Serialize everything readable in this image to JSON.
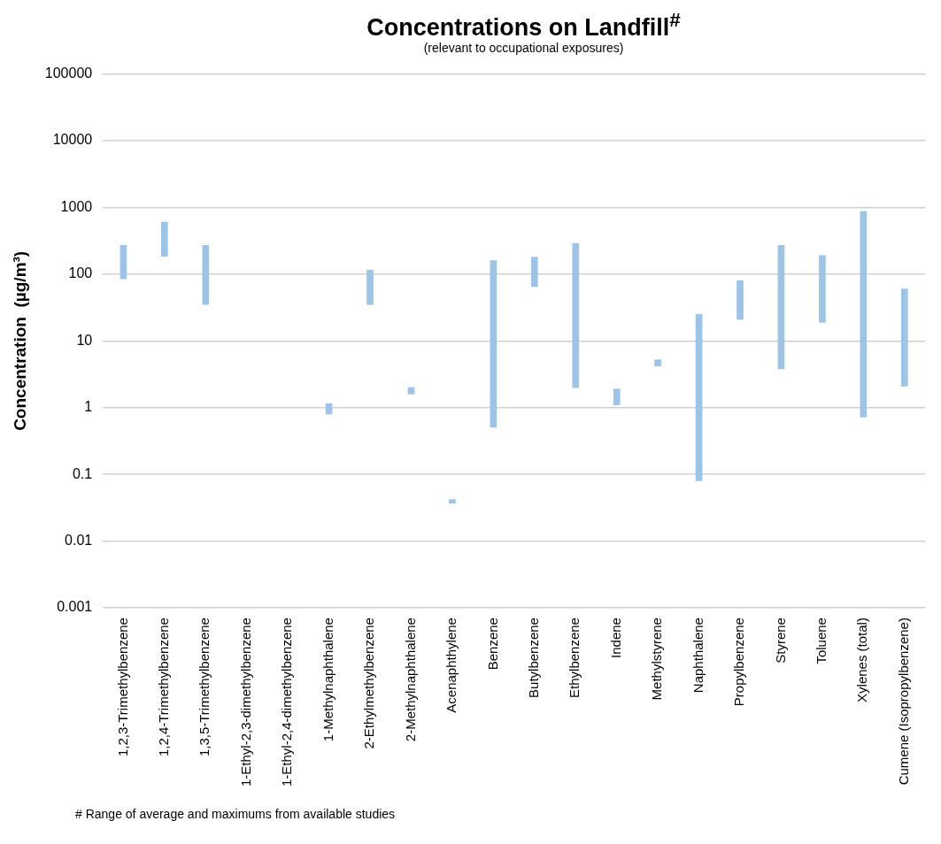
{
  "chart_data": {
    "type": "bar",
    "title": "Concentrations on Landfill$^{#}$",
    "subtitle": "(relevant to occupational exposures)",
    "ylabel": "Concentration  (µg/m³)",
    "categories": [
      "1,2,3-Trimethylbenzene",
      "1,2,4-Trimethylbenzene",
      "1,3,5-Trimethylbenzene",
      "1-Ethyl-2,3-dimethylbenzene",
      "1-Ethyl-2,4-dimethylbenzene",
      "1-Methylnaphthalene",
      "2-Ethylmethylbenzene",
      "2-Methylnaphthalene",
      "Acenaphthylene",
      "Benzene",
      "Butylbenzene",
      "Ethylbenzene",
      "Indene",
      "Methylstyrene",
      "Naphthalene",
      "Propylbenzene",
      "Styrene",
      "Toluene",
      "Xylenes (total)",
      "Cumene (Isopropylbenzene)"
    ],
    "base": [
      85,
      185,
      35,
      null,
      null,
      0.8,
      35,
      1.6,
      0.037,
      0.51,
      65,
      2.0,
      1.1,
      4.2,
      0.08,
      21,
      3.8,
      19,
      0.72,
      2.1
    ],
    "values": [
      185,
      415,
      235,
      null,
      null,
      0.35,
      80,
      0.4,
      0.005,
      159.5,
      115,
      288,
      0.8,
      1.0,
      24.9,
      59,
      266,
      171,
      869,
      58
    ],
    "color": "#9dc3e6",
    "log": "y",
    "ylim": [
      0.001,
      100000
    ],
    "yticks": [
      0.001,
      0.01,
      0.1,
      1,
      10,
      100,
      1000,
      10000,
      100000
    ],
    "grid": "y",
    "annotations": [
      "# Range of average and maximums from available studies"
    ]
  }
}
